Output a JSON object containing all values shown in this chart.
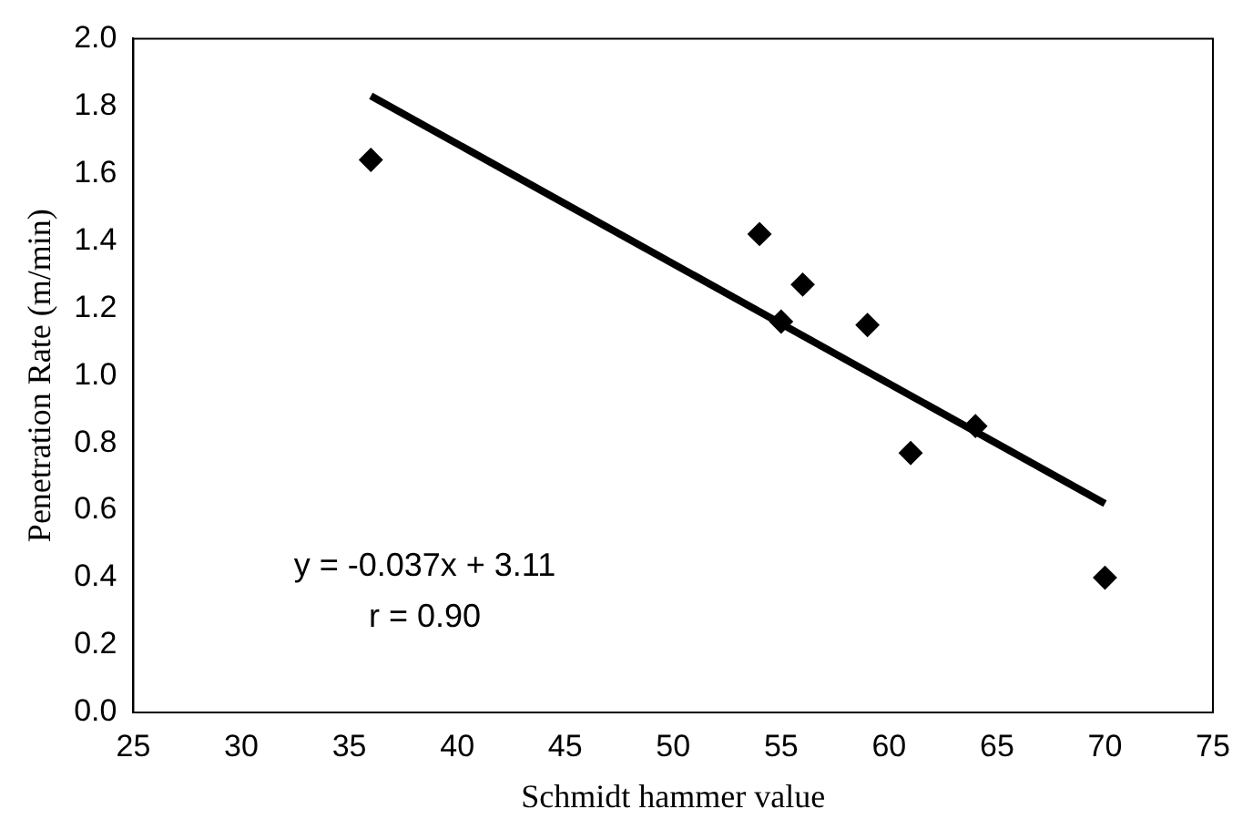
{
  "chart_data": {
    "type": "scatter",
    "xlabel": "Schmidt hammer value",
    "ylabel": "Penetration Rate (m/min)",
    "x": [
      36,
      54,
      55,
      56,
      59,
      61,
      64,
      70
    ],
    "series": [
      {
        "type": "scatter",
        "color": "#000000",
        "marker": "diamond",
        "values": [
          1.64,
          1.42,
          1.16,
          1.27,
          1.15,
          0.77,
          0.85,
          0.4
        ]
      },
      {
        "type": "line",
        "color": "#000000",
        "x": [
          36,
          70
        ],
        "values": [
          1.83,
          0.62
        ],
        "marker": "none",
        "line_style": "solid"
      }
    ],
    "xlim": [
      25,
      75
    ],
    "xticks": [
      25,
      30,
      35,
      40,
      45,
      50,
      55,
      60,
      65,
      70,
      75
    ],
    "ylim": [
      0,
      2.0
    ],
    "yticks": [
      {
        "value": 0,
        "label": "0.0"
      },
      {
        "value": 0.2,
        "label": "0.2"
      },
      {
        "value": 0.4,
        "label": "0.4"
      },
      {
        "value": 0.6,
        "label": "0.6"
      },
      {
        "value": 0.8,
        "label": "0.8"
      },
      {
        "value": 1.0,
        "label": "1.0"
      },
      {
        "value": 1.2,
        "label": "1.2"
      },
      {
        "value": 1.4,
        "label": "1.4"
      },
      {
        "value": 1.6,
        "label": "1.6"
      },
      {
        "value": 1.8,
        "label": "1.8"
      },
      {
        "value": 2.0,
        "label": "2.0"
      }
    ],
    "annotations": [
      "y = -0.037x + 3.11",
      "r = 0.90"
    ],
    "grid": false,
    "legend": false
  }
}
